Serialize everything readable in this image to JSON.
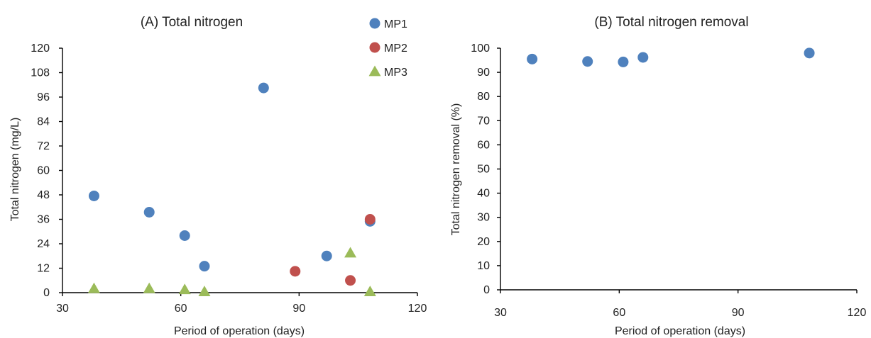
{
  "chart_data": [
    {
      "type": "scatter",
      "title": "(A) Total nitrogen",
      "xlabel": "Period of operation (days)",
      "ylabel": "Total nitrogen (mg/L)",
      "xlim": [
        30,
        120
      ],
      "ylim": [
        0,
        120
      ],
      "x_ticks": [
        30,
        60,
        90,
        120
      ],
      "y_ticks": [
        0,
        12,
        24,
        36,
        48,
        60,
        72,
        84,
        96,
        108,
        120
      ],
      "grid": false,
      "legend_position": "top-right",
      "series": [
        {
          "name": "MP1",
          "marker": "circle",
          "color": "#4f81bd",
          "points": [
            {
              "x": 38,
              "y": 47.5
            },
            {
              "x": 52,
              "y": 39.5
            },
            {
              "x": 61,
              "y": 28
            },
            {
              "x": 66,
              "y": 13
            },
            {
              "x": 81,
              "y": 100.5
            },
            {
              "x": 97,
              "y": 18
            },
            {
              "x": 108,
              "y": 35
            }
          ]
        },
        {
          "name": "MP2",
          "marker": "circle",
          "color": "#c0504d",
          "points": [
            {
              "x": 89,
              "y": 10.5
            },
            {
              "x": 103,
              "y": 6
            },
            {
              "x": 108,
              "y": 36
            }
          ]
        },
        {
          "name": "MP3",
          "marker": "triangle",
          "color": "#9bbb59",
          "points": [
            {
              "x": 38,
              "y": 2
            },
            {
              "x": 52,
              "y": 2
            },
            {
              "x": 61,
              "y": 1.5
            },
            {
              "x": 66,
              "y": 0.5
            },
            {
              "x": 103,
              "y": 19.5
            },
            {
              "x": 108,
              "y": 0.5
            }
          ]
        }
      ]
    },
    {
      "type": "scatter",
      "title": "(B) Total nitrogen removal",
      "xlabel": "Period of operation (days)",
      "ylabel": "Total nitrogen removal (%)",
      "xlim": [
        30,
        120
      ],
      "ylim": [
        0,
        100
      ],
      "x_ticks": [
        30,
        60,
        90,
        120
      ],
      "y_ticks": [
        0,
        10,
        20,
        30,
        40,
        50,
        60,
        70,
        80,
        90,
        100
      ],
      "grid": false,
      "series": [
        {
          "marker": "circle",
          "color": "#4f81bd",
          "points": [
            {
              "x": 38,
              "y": 95.5
            },
            {
              "x": 52,
              "y": 94.5
            },
            {
              "x": 61,
              "y": 94.3
            },
            {
              "x": 66,
              "y": 96.2
            },
            {
              "x": 108,
              "y": 98
            }
          ]
        }
      ]
    }
  ]
}
